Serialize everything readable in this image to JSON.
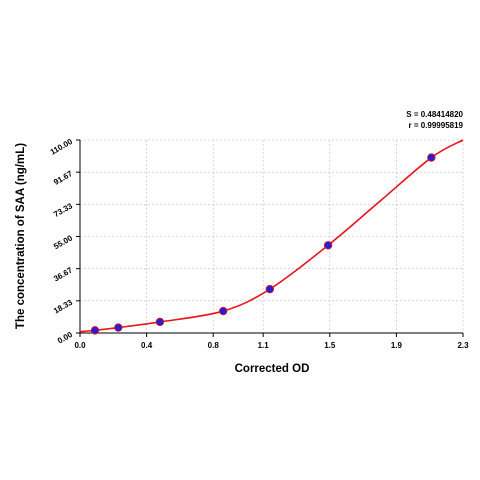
{
  "chart_data": {
    "type": "scatter",
    "xlabel": "Corrected OD",
    "ylabel": "The concentration of SAA (ng/mL)",
    "xlim": [
      0.0,
      2.3
    ],
    "ylim": [
      0.0,
      110.0
    ],
    "xticks": [
      "0.0",
      "0.4",
      "0.8",
      "1.1",
      "1.5",
      "1.9",
      "2.3"
    ],
    "yticks": [
      "0.00",
      "18.33",
      "36.67",
      "55.00",
      "73.33",
      "91.67",
      "110.00"
    ],
    "grid": true,
    "stats": {
      "s": "S = 0.48414820",
      "r": "r = 0.99995819"
    },
    "points": {
      "x": [
        0.09,
        0.23,
        0.48,
        0.86,
        1.14,
        1.49,
        2.11
      ],
      "y": [
        1.5,
        3.1,
        6.3,
        12.5,
        25.0,
        50.0,
        100.0
      ]
    },
    "curve": {
      "x": [
        0.0,
        0.09,
        0.23,
        0.48,
        0.86,
        1.14,
        1.49,
        1.8,
        2.11,
        2.3
      ],
      "y": [
        0.8,
        1.5,
        3.1,
        6.3,
        12.5,
        25.0,
        50.0,
        75.0,
        100.0,
        110.0
      ]
    },
    "colors": {
      "curve": "#e8141b",
      "point_fill": "#2a1fd0",
      "point_edge": "#e8141b",
      "grid": "#bdbdbd",
      "axis": "#000000"
    }
  }
}
